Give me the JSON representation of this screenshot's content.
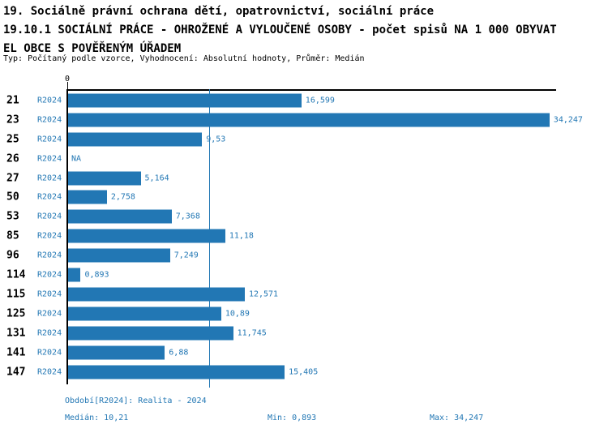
{
  "title": {
    "line1": "19. Sociálně právní ochrana dětí, opatrovnictví, sociální práce",
    "line2": "19.10.1 SOCIÁLNÍ PRÁCE - OHROŽENÉ A VYLOUČENÉ OSOBY - počet spisů NA 1 000 OBYVAT",
    "line3": "EL OBCE S POVĚŘENÝM ÚŘADEM",
    "meta": "Typ: Počítaný podle vzorce, Vyhodnocení: Absolutní hodnoty, Průměr: Medián"
  },
  "chart_data": {
    "type": "bar",
    "orientation": "horizontal",
    "title": "19.10.1 SOCIÁLNÍ PRÁCE - OHROŽENÉ A VYLOUČENÉ OSOBY - počet spisů NA 1 000 OBYVATEL OBCE S POVĚŘENÝM ÚŘADEM",
    "series_name": "R2024",
    "axis": {
      "origin_label": "0",
      "max": 34.72,
      "grid": false,
      "median_line_value": 10.21
    },
    "rows": [
      {
        "code": "21",
        "period": "R2024",
        "value": 16.599,
        "label": "16,599"
      },
      {
        "code": "23",
        "period": "R2024",
        "value": 34.247,
        "label": "34,247"
      },
      {
        "code": "25",
        "period": "R2024",
        "value": 9.53,
        "label": "9,53"
      },
      {
        "code": "26",
        "period": "R2024",
        "value": null,
        "label": "NA"
      },
      {
        "code": "27",
        "period": "R2024",
        "value": 5.164,
        "label": "5,164"
      },
      {
        "code": "50",
        "period": "R2024",
        "value": 2.758,
        "label": "2,758"
      },
      {
        "code": "53",
        "period": "R2024",
        "value": 7.368,
        "label": "7,368"
      },
      {
        "code": "85",
        "period": "R2024",
        "value": 11.18,
        "label": "11,18"
      },
      {
        "code": "96",
        "period": "R2024",
        "value": 7.249,
        "label": "7,249"
      },
      {
        "code": "114",
        "period": "R2024",
        "value": 0.893,
        "label": "0,893"
      },
      {
        "code": "115",
        "period": "R2024",
        "value": 12.571,
        "label": "12,571"
      },
      {
        "code": "125",
        "period": "R2024",
        "value": 10.89,
        "label": "10,89"
      },
      {
        "code": "131",
        "period": "R2024",
        "value": 11.745,
        "label": "11,745"
      },
      {
        "code": "141",
        "period": "R2024",
        "value": 6.88,
        "label": "6,88"
      },
      {
        "code": "147",
        "period": "R2024",
        "value": 15.405,
        "label": "15,405"
      }
    ]
  },
  "footer": {
    "period_line": "Období[R2024]: Realita - 2024",
    "median": "Medián: 10,21",
    "min": "Min: 0,893",
    "max": "Max: 34,247"
  },
  "colors": {
    "bar": "#2277b4",
    "blue_text": "#2277b4",
    "median_line": "#2277b4",
    "axis": "#000000"
  }
}
